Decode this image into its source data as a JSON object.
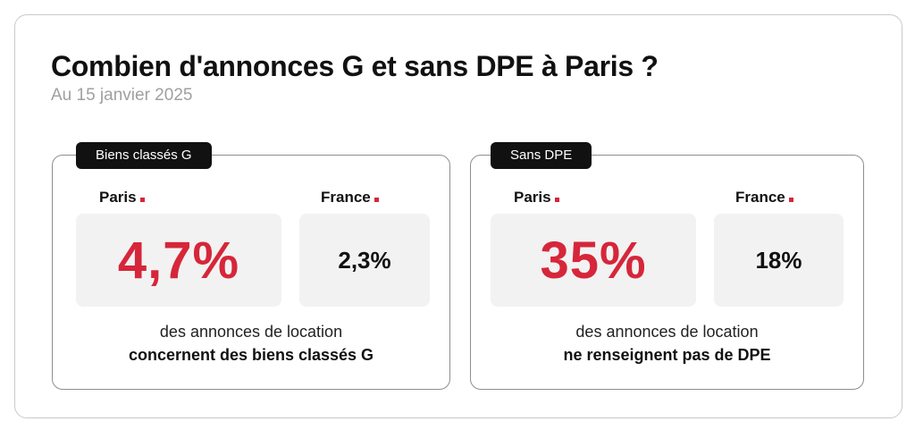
{
  "header": {
    "title": "Combien d'annonces G et sans DPE à Paris ?",
    "subtitle": "Au 15 janvier 2025"
  },
  "colors": {
    "accent": "#d6263a",
    "tag_background": "#111111",
    "value_box_background": "#f2f2f2"
  },
  "panels": [
    {
      "tag": "Biens classés G",
      "paris_label": "Paris",
      "paris_value": "4,7%",
      "france_label": "France",
      "france_value": "2,3%",
      "description_line1": "des annonces de location",
      "description_line2": "concernent des biens classés G"
    },
    {
      "tag": "Sans DPE",
      "paris_label": "Paris",
      "paris_value": "35%",
      "france_label": "France",
      "france_value": "18%",
      "description_line1": "des annonces de location",
      "description_line2": "ne renseignent pas de DPE"
    }
  ]
}
